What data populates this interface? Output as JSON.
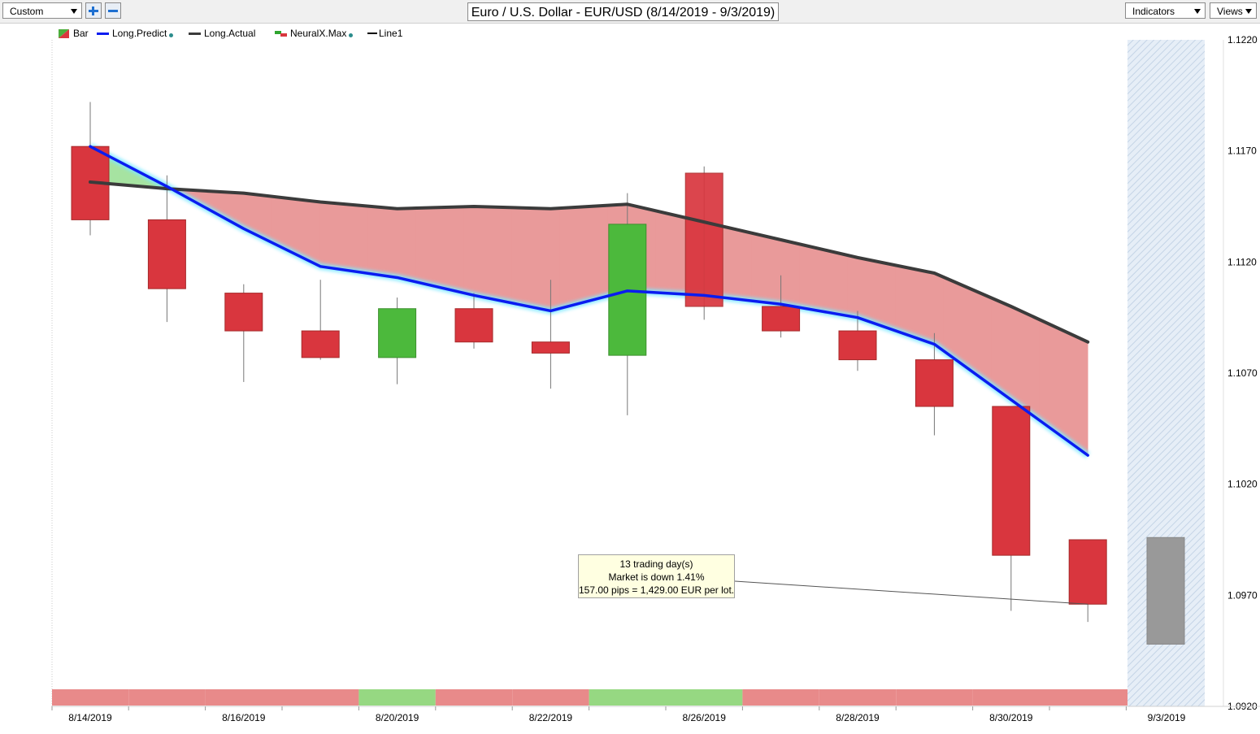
{
  "toolbar": {
    "preset_select": "Custom",
    "zoom_in_icon": "plus-icon",
    "zoom_out_icon": "minus-icon",
    "chart_title": "Euro / U.S. Dollar - EUR/USD (8/14/2019 - 9/3/2019)",
    "indicators_select": "Indicators",
    "views_select": "Views"
  },
  "legend": [
    {
      "key": "bar",
      "label": "Bar",
      "color": "#d9363e",
      "color2": "#4cae3c",
      "dot": false
    },
    {
      "key": "long_predict",
      "label": "Long.Predict",
      "color": "#0a1cf0",
      "dot": true
    },
    {
      "key": "long_actual",
      "label": "Long.Actual",
      "color": "#3b3b3b",
      "dot": false
    },
    {
      "key": "neuralx_max",
      "label": "NeuralX.Max",
      "color": "#d9363e",
      "color2": "#2fa52f",
      "dot": true
    },
    {
      "key": "line1",
      "label": "Line1",
      "color": "#000000",
      "dot": false
    }
  ],
  "tooltip": {
    "line1": "13 trading day(s)",
    "line2": "Market is down 1.41%",
    "line3": "157.00 pips = 1,429.00 EUR per lot."
  },
  "colors": {
    "bear": "#d9363e",
    "bull": "#4cb93c",
    "predict": "#0a1cf0",
    "actual": "#3b3b3b",
    "band_down": "#e99a9a",
    "band_up": "#a6e3a1",
    "strip_down": "#e88a8a",
    "strip_up": "#96d882",
    "forecast": "#999999"
  },
  "chart_data": {
    "type": "candlestick",
    "title": "Euro / U.S. Dollar - EUR/USD (8/14/2019 - 9/3/2019)",
    "ylim": [
      1.092,
      1.122
    ],
    "y_ticks": [
      "1.1220",
      "1.1170",
      "1.1120",
      "1.1070",
      "1.1020",
      "1.0970",
      "1.0920"
    ],
    "x_labels": [
      "8/14/2019",
      "8/16/2019",
      "8/20/2019",
      "8/22/2019",
      "8/26/2019",
      "8/28/2019",
      "8/30/2019",
      "9/3/2019"
    ],
    "candles": [
      {
        "date": "8/14/2019",
        "open": 1.1172,
        "high": 1.1192,
        "low": 1.1132,
        "close": 1.1139
      },
      {
        "date": "8/15/2019",
        "open": 1.1139,
        "high": 1.1159,
        "low": 1.1093,
        "close": 1.1108
      },
      {
        "date": "8/16/2019",
        "open": 1.1106,
        "high": 1.111,
        "low": 1.1066,
        "close": 1.1089
      },
      {
        "date": "8/19/2019",
        "open": 1.1089,
        "high": 1.1112,
        "low": 1.1076,
        "close": 1.1077
      },
      {
        "date": "8/20/2019",
        "open": 1.1077,
        "high": 1.1104,
        "low": 1.1065,
        "close": 1.1099
      },
      {
        "date": "8/21/2019",
        "open": 1.1099,
        "high": 1.1106,
        "low": 1.1081,
        "close": 1.1084
      },
      {
        "date": "8/22/2019",
        "open": 1.1084,
        "high": 1.1112,
        "low": 1.1063,
        "close": 1.1079
      },
      {
        "date": "8/23/2019",
        "open": 1.1078,
        "high": 1.1151,
        "low": 1.1051,
        "close": 1.1137
      },
      {
        "date": "8/26/2019",
        "open": 1.116,
        "high": 1.1163,
        "low": 1.1094,
        "close": 1.11
      },
      {
        "date": "8/27/2019",
        "open": 1.11,
        "high": 1.1114,
        "low": 1.1086,
        "close": 1.1089
      },
      {
        "date": "8/28/2019",
        "open": 1.1089,
        "high": 1.1098,
        "low": 1.1071,
        "close": 1.1076
      },
      {
        "date": "8/29/2019",
        "open": 1.1076,
        "high": 1.1088,
        "low": 1.1042,
        "close": 1.1055
      },
      {
        "date": "8/30/2019",
        "open": 1.1055,
        "high": 1.1055,
        "low": 1.0963,
        "close": 1.0988
      },
      {
        "date": "9/2/2019",
        "open": 1.0995,
        "high": 1.0995,
        "low": 1.0958,
        "close": 1.0966
      }
    ],
    "forecast_bar": {
      "date": "9/3/2019",
      "high": 1.0996,
      "low": 1.0948
    },
    "series": [
      {
        "name": "Long.Predict",
        "values": [
          1.1172,
          1.1154,
          1.1135,
          1.1118,
          1.1113,
          1.1105,
          1.1098,
          1.1107,
          1.1105,
          1.1101,
          1.1095,
          1.1083,
          1.1058,
          1.1033
        ]
      },
      {
        "name": "Long.Actual",
        "values": [
          1.1156,
          1.1153,
          1.1151,
          1.1147,
          1.1144,
          1.1145,
          1.1144,
          1.1146,
          1.1138,
          1.113,
          1.1122,
          1.1115,
          1.11,
          1.1084
        ]
      }
    ],
    "signal_strip": [
      "down",
      "down",
      "down",
      "down",
      "up",
      "down",
      "down",
      "up",
      "up",
      "down",
      "down",
      "down",
      "down",
      "down"
    ],
    "legend_placement": "top-left",
    "grid": false
  }
}
